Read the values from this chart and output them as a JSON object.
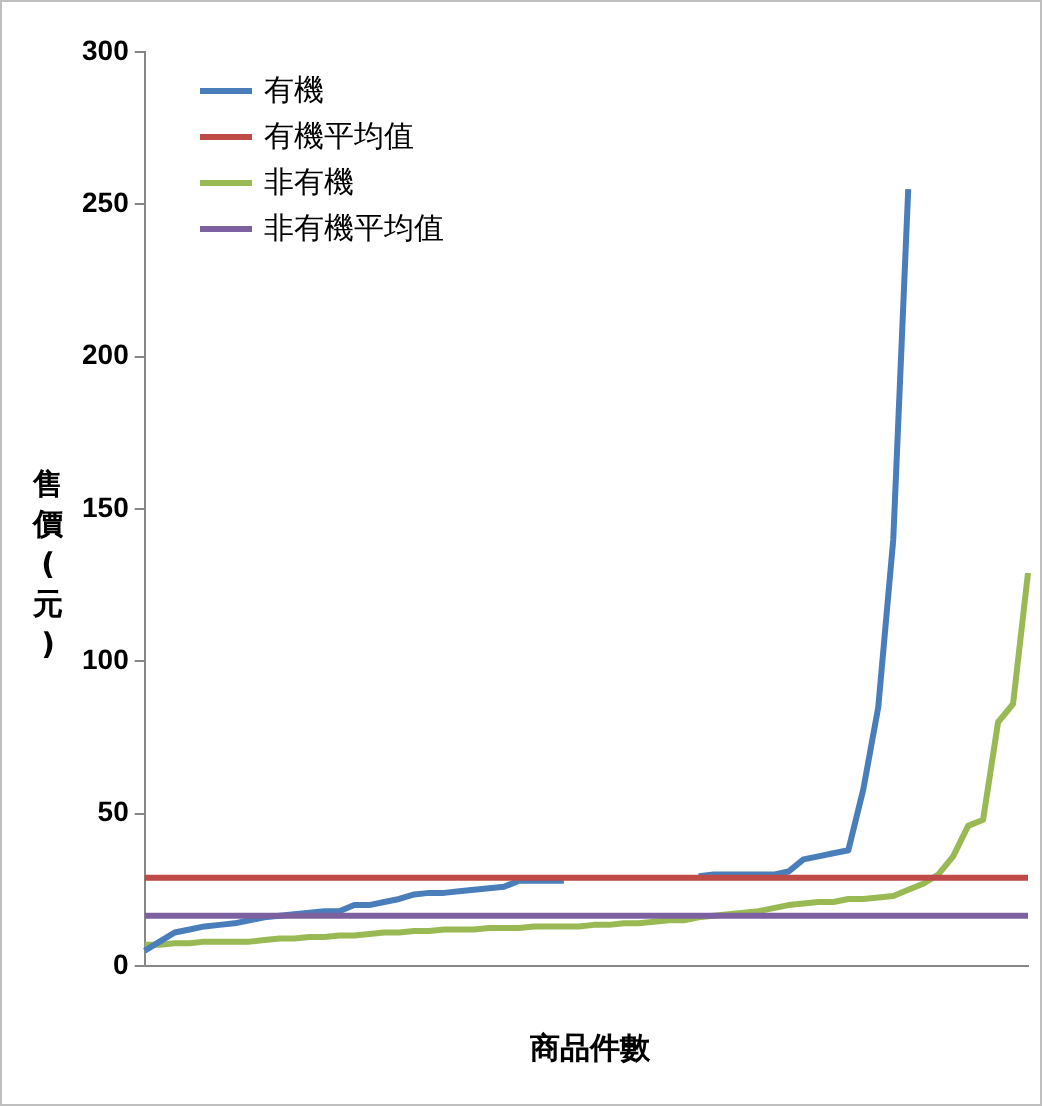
{
  "chart_data": {
    "type": "line",
    "xlabel": "商品件數",
    "ylabel": "售價(元)",
    "categories": [
      null,
      null,
      null,
      null,
      null,
      null,
      null,
      null,
      null,
      null,
      null,
      null,
      null,
      null,
      null,
      null,
      null,
      null,
      null,
      null,
      null,
      null,
      null,
      null,
      null,
      null,
      null,
      null,
      null,
      null,
      null,
      null,
      null,
      null,
      null,
      null,
      null,
      null,
      null,
      null,
      null,
      null,
      null,
      null,
      null,
      null,
      null,
      null,
      null,
      null,
      null,
      null,
      null,
      null,
      null,
      null,
      null,
      null,
      null,
      null
    ],
    "series": [
      {
        "name": "有機",
        "color": "#4a7ebb",
        "values": [
          5,
          8,
          11,
          12,
          13,
          13.5,
          14,
          15,
          16,
          16.5,
          17,
          17.5,
          18,
          18,
          20,
          20,
          21,
          22,
          23.5,
          24,
          24,
          24.5,
          25,
          25.5,
          26,
          28,
          28,
          28,
          28,
          null,
          null,
          null,
          null,
          null,
          null,
          null,
          null,
          29.5,
          30,
          30,
          30,
          30,
          30,
          31,
          35,
          36,
          37,
          38,
          58,
          85,
          140,
          255,
          null,
          null,
          null,
          null,
          null,
          null,
          null,
          null
        ]
      },
      {
        "name": "非有機",
        "color": "#98b954",
        "values": [
          7,
          7,
          7.5,
          7.5,
          8,
          8,
          8,
          8,
          8.5,
          9,
          9,
          9.5,
          9.5,
          10,
          10,
          10.5,
          11,
          11,
          11.5,
          11.5,
          12,
          12,
          12,
          12.5,
          12.5,
          12.5,
          13,
          13,
          13,
          13,
          13.5,
          13.5,
          14,
          14,
          14.5,
          15,
          15,
          16,
          16.5,
          17,
          17.5,
          18,
          19,
          20,
          20.5,
          21,
          21,
          22,
          22,
          22.5,
          23,
          25,
          27,
          30,
          36,
          46,
          48,
          80,
          86,
          129
        ]
      }
    ],
    "ref_lines": [
      {
        "axis": "y",
        "value": 29,
        "label": "有機平均值",
        "color": "#be4b48"
      },
      {
        "axis": "y",
        "value": 16.5,
        "label": "非有機平均值",
        "color": "#7d60a0"
      }
    ],
    "ylim": [
      0,
      300
    ],
    "yticks": [
      0,
      50,
      100,
      150,
      200,
      250,
      300
    ],
    "tick_labels": "y",
    "grid": false,
    "legend": "top left",
    "marker": "none",
    "line_style": "solid"
  }
}
